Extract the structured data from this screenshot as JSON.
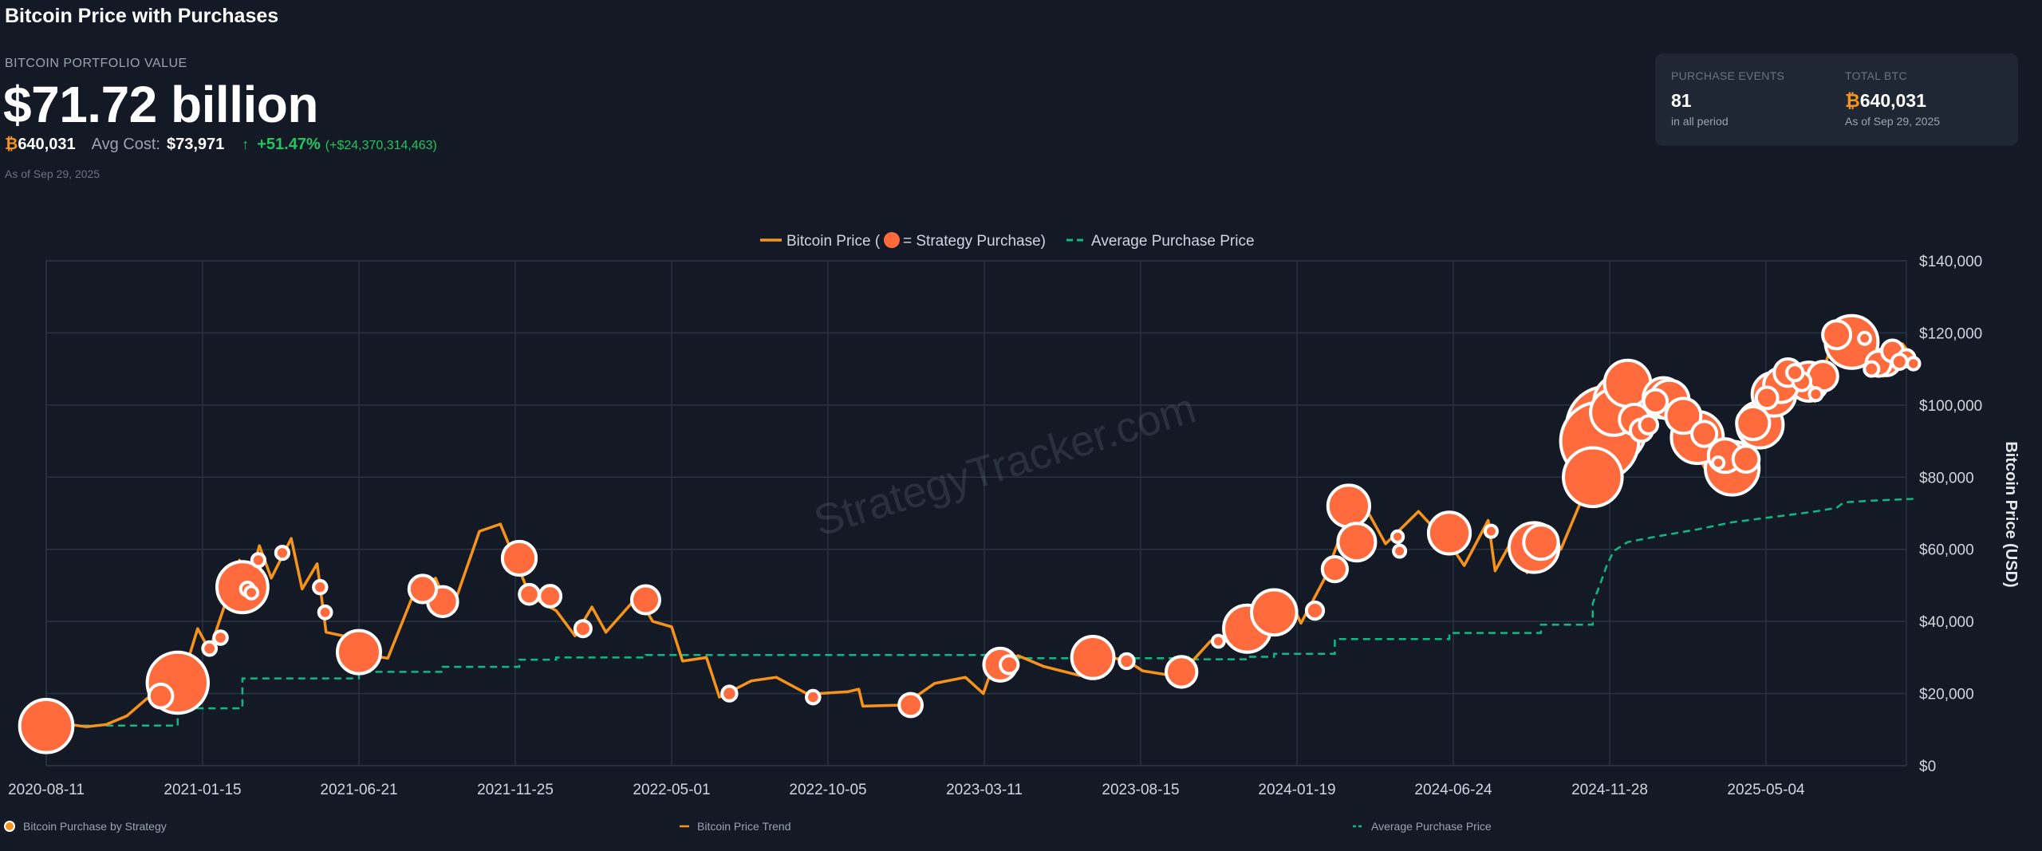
{
  "page": {
    "title": "Bitcoin Price with Purchases"
  },
  "portfolio": {
    "label": "BITCOIN PORTFOLIO VALUE",
    "value": "$71.72 billion",
    "btc_symbol": "₿",
    "btc_holdings": "640,031",
    "avg_cost_label": "Avg Cost:",
    "avg_cost_value": "$73,971",
    "gain_arrow": "↑",
    "gain_pct": "+51.47%",
    "gain_abs": "(+$24,370,314,463)",
    "as_of": "As of Sep 29, 2025"
  },
  "summary_card": {
    "purchase_events_label": "PURCHASE EVENTS",
    "purchase_events_value": "81",
    "purchase_events_sub": "in all period",
    "total_btc_label": "TOTAL BTC",
    "total_btc_symbol": "₿",
    "total_btc_value": "640,031",
    "total_btc_sub": "As of Sep 29, 2025"
  },
  "colors": {
    "background": "#131a26",
    "price_line": "#f7931a",
    "purchase_marker": "#ff6b3d",
    "average_line": "#10b981",
    "gain": "#22c55e",
    "grid": "#2a3342"
  },
  "watermark": "StrategyTracker.com",
  "chart_data": {
    "type": "line",
    "top_legend": {
      "price_label": "Bitcoin Price (",
      "price_label_suffix": " = Strategy Purchase)",
      "average_label": "Average Purchase Price"
    },
    "bottom_legend": [
      {
        "label": "Bitcoin Purchase by Strategy",
        "marker": "circle"
      },
      {
        "label": "Bitcoin Price Trend",
        "marker": "line"
      },
      {
        "label": "Average Purchase Price",
        "marker": "dashed-line"
      }
    ],
    "ylabel": "Bitcoin Price (USD)",
    "ylim": [
      0,
      140000
    ],
    "y_ticks": [
      0,
      20000,
      40000,
      60000,
      80000,
      100000,
      120000,
      140000
    ],
    "y_tick_labels": [
      "$0",
      "$20,000",
      "$40,000",
      "$60,000",
      "$80,000",
      "$100,000",
      "$120,000",
      "$140,000"
    ],
    "x_range": [
      "2020-08-11",
      "2025-09-29"
    ],
    "x_ticks": [
      "2020-08-11",
      "2021-01-15",
      "2021-06-21",
      "2021-11-25",
      "2022-05-01",
      "2022-10-05",
      "2023-03-11",
      "2023-08-15",
      "2024-01-19",
      "2024-06-24",
      "2024-11-28",
      "2025-05-04"
    ],
    "grid": true,
    "series": [
      {
        "name": "Bitcoin Price",
        "style": "line",
        "points": [
          [
            "2020-08-11",
            11800
          ],
          [
            "2020-09-01",
            11500
          ],
          [
            "2020-09-20",
            10800
          ],
          [
            "2020-10-10",
            11400
          ],
          [
            "2020-10-31",
            13800
          ],
          [
            "2020-11-20",
            18600
          ],
          [
            "2020-12-15",
            19400
          ],
          [
            "2020-12-31",
            29000
          ],
          [
            "2021-01-10",
            38000
          ],
          [
            "2021-01-22",
            32000
          ],
          [
            "2021-02-08",
            46000
          ],
          [
            "2021-02-21",
            57000
          ],
          [
            "2021-03-01",
            49000
          ],
          [
            "2021-03-13",
            61000
          ],
          [
            "2021-03-25",
            52000
          ],
          [
            "2021-04-14",
            63000
          ],
          [
            "2021-04-25",
            49000
          ],
          [
            "2021-05-10",
            56000
          ],
          [
            "2021-05-19",
            37000
          ],
          [
            "2021-06-05",
            36000
          ],
          [
            "2021-06-21",
            31000
          ],
          [
            "2021-07-20",
            29800
          ],
          [
            "2021-08-14",
            47000
          ],
          [
            "2021-09-06",
            52000
          ],
          [
            "2021-09-21",
            42000
          ],
          [
            "2021-10-20",
            65000
          ],
          [
            "2021-11-10",
            67000
          ],
          [
            "2021-11-25",
            57000
          ],
          [
            "2021-12-10",
            47000
          ],
          [
            "2022-01-05",
            43000
          ],
          [
            "2022-01-24",
            36000
          ],
          [
            "2022-02-10",
            44000
          ],
          [
            "2022-02-24",
            37000
          ],
          [
            "2022-03-28",
            47000
          ],
          [
            "2022-04-12",
            40000
          ],
          [
            "2022-05-01",
            38500
          ],
          [
            "2022-05-12",
            29000
          ],
          [
            "2022-06-05",
            30000
          ],
          [
            "2022-06-18",
            19000
          ],
          [
            "2022-07-20",
            23500
          ],
          [
            "2022-08-14",
            24500
          ],
          [
            "2022-09-15",
            19800
          ],
          [
            "2022-10-25",
            20500
          ],
          [
            "2022-11-05",
            21200
          ],
          [
            "2022-11-09",
            16500
          ],
          [
            "2022-12-20",
            16800
          ],
          [
            "2023-01-20",
            22800
          ],
          [
            "2023-02-20",
            24500
          ],
          [
            "2023-03-10",
            20000
          ],
          [
            "2023-03-20",
            28000
          ],
          [
            "2023-04-14",
            30500
          ],
          [
            "2023-05-10",
            27500
          ],
          [
            "2023-06-15",
            25000
          ],
          [
            "2023-07-05",
            30500
          ],
          [
            "2023-08-01",
            29200
          ],
          [
            "2023-08-17",
            26300
          ],
          [
            "2023-09-11",
            25200
          ],
          [
            "2023-10-01",
            27500
          ],
          [
            "2023-10-24",
            34500
          ],
          [
            "2023-11-25",
            37500
          ],
          [
            "2023-12-08",
            43500
          ],
          [
            "2024-01-11",
            46500
          ],
          [
            "2024-01-23",
            39500
          ],
          [
            "2024-02-15",
            51500
          ],
          [
            "2024-03-14",
            72000
          ],
          [
            "2024-04-01",
            69500
          ],
          [
            "2024-04-17",
            61500
          ],
          [
            "2024-05-20",
            70500
          ],
          [
            "2024-06-24",
            60000
          ],
          [
            "2024-07-05",
            55500
          ],
          [
            "2024-07-29",
            68000
          ],
          [
            "2024-08-05",
            54000
          ],
          [
            "2024-08-25",
            64000
          ],
          [
            "2024-09-06",
            53500
          ],
          [
            "2024-09-27",
            66000
          ],
          [
            "2024-10-10",
            60000
          ],
          [
            "2024-10-29",
            72500
          ],
          [
            "2024-11-12",
            88000
          ],
          [
            "2024-11-22",
            98500
          ],
          [
            "2024-12-05",
            100000
          ],
          [
            "2024-12-17",
            106000
          ],
          [
            "2024-12-30",
            92000
          ],
          [
            "2025-01-20",
            106000
          ],
          [
            "2025-02-01",
            100000
          ],
          [
            "2025-02-25",
            86000
          ],
          [
            "2025-03-10",
            79000
          ],
          [
            "2025-04-07",
            77000
          ],
          [
            "2025-04-25",
            94500
          ],
          [
            "2025-05-22",
            111000
          ],
          [
            "2025-06-22",
            101000
          ],
          [
            "2025-07-14",
            122000
          ],
          [
            "2025-07-31",
            114000
          ],
          [
            "2025-08-14",
            123500
          ],
          [
            "2025-08-30",
            108000
          ],
          [
            "2025-09-18",
            117000
          ],
          [
            "2025-09-29",
            113000
          ]
        ]
      },
      {
        "name": "Average Purchase Price",
        "style": "dashed-step",
        "points": [
          [
            "2020-08-11",
            11100
          ],
          [
            "2020-12-21",
            11100
          ],
          [
            "2020-12-21",
            15900
          ],
          [
            "2021-02-24",
            15900
          ],
          [
            "2021-02-24",
            24200
          ],
          [
            "2021-06-21",
            24200
          ],
          [
            "2021-06-21",
            26000
          ],
          [
            "2021-09-13",
            26000
          ],
          [
            "2021-09-13",
            27400
          ],
          [
            "2021-11-29",
            27400
          ],
          [
            "2021-11-29",
            29400
          ],
          [
            "2022-01-05",
            29400
          ],
          [
            "2022-01-05",
            30000
          ],
          [
            "2022-04-05",
            30000
          ],
          [
            "2022-04-05",
            30700
          ],
          [
            "2023-03-27",
            30700
          ],
          [
            "2023-03-27",
            29800
          ],
          [
            "2023-09-25",
            29800
          ],
          [
            "2023-09-25",
            29500
          ],
          [
            "2023-11-30",
            29500
          ],
          [
            "2023-11-30",
            30200
          ],
          [
            "2023-12-27",
            30200
          ],
          [
            "2023-12-27",
            31000
          ],
          [
            "2024-02-26",
            31000
          ],
          [
            "2024-02-26",
            35100
          ],
          [
            "2024-06-20",
            35100
          ],
          [
            "2024-06-20",
            36800
          ],
          [
            "2024-09-20",
            36800
          ],
          [
            "2024-09-20",
            39100
          ],
          [
            "2024-11-11",
            39100
          ],
          [
            "2024-11-11",
            45000
          ],
          [
            "2024-11-18",
            50000
          ],
          [
            "2024-11-25",
            55500
          ],
          [
            "2024-12-02",
            59500
          ],
          [
            "2024-12-16",
            62000
          ],
          [
            "2025-01-13",
            63500
          ],
          [
            "2025-02-24",
            65500
          ],
          [
            "2025-03-31",
            67500
          ],
          [
            "2025-04-28",
            68500
          ],
          [
            "2025-05-26",
            69500
          ],
          [
            "2025-06-23",
            70500
          ],
          [
            "2025-07-14",
            71500
          ],
          [
            "2025-07-21",
            73000
          ],
          [
            "2025-08-18",
            73500
          ],
          [
            "2025-09-29",
            73971
          ]
        ]
      },
      {
        "name": "Strategy Purchases",
        "style": "bubble",
        "points": [
          [
            "2020-08-11",
            11000,
            21454
          ],
          [
            "2020-12-21",
            23000,
            29646
          ],
          [
            "2020-12-04",
            19300,
            2574
          ],
          [
            "2021-01-22",
            32500,
            314
          ],
          [
            "2021-02-02",
            35500,
            295
          ],
          [
            "2021-02-24",
            49500,
            19452
          ],
          [
            "2021-03-01",
            49000,
            328
          ],
          [
            "2021-03-05",
            48000,
            205
          ],
          [
            "2021-03-12",
            57000,
            262
          ],
          [
            "2021-04-05",
            59000,
            253
          ],
          [
            "2021-05-13",
            49500,
            271
          ],
          [
            "2021-05-18",
            42500,
            229
          ],
          [
            "2021-06-21",
            31500,
            13005
          ],
          [
            "2021-08-24",
            49000,
            3907
          ],
          [
            "2021-09-13",
            45500,
            5050
          ],
          [
            "2021-11-29",
            57500,
            7002
          ],
          [
            "2021-12-09",
            47500,
            1434
          ],
          [
            "2021-12-30",
            47000,
            1914
          ],
          [
            "2022-02-01",
            38000,
            660
          ],
          [
            "2022-04-05",
            46000,
            4167
          ],
          [
            "2022-06-28",
            20000,
            480
          ],
          [
            "2022-09-20",
            19000,
            301
          ],
          [
            "2022-12-27",
            16800,
            2395
          ],
          [
            "2023-03-27",
            28000,
            6455
          ],
          [
            "2023-04-05",
            28000,
            1045
          ],
          [
            "2023-06-28",
            30000,
            12333
          ],
          [
            "2023-08-01",
            29000,
            467
          ],
          [
            "2023-09-25",
            26000,
            5445
          ],
          [
            "2023-11-01",
            34500,
            155
          ],
          [
            "2023-11-30",
            38000,
            16130
          ],
          [
            "2023-12-27",
            42500,
            14620
          ],
          [
            "2024-02-06",
            43000,
            850
          ],
          [
            "2024-02-26",
            54500,
            3000
          ],
          [
            "2024-03-11",
            72000,
            12000
          ],
          [
            "2024-03-19",
            62000,
            9245
          ],
          [
            "2024-04-29",
            63500,
            122
          ],
          [
            "2024-06-20",
            64500,
            11931
          ],
          [
            "2024-08-01",
            65000,
            169
          ],
          [
            "2024-09-13",
            60500,
            18300
          ],
          [
            "2024-09-20",
            62000,
            7420
          ],
          [
            "2024-11-11",
            80000,
            27200
          ],
          [
            "2024-11-18",
            90000,
            51780
          ],
          [
            "2024-11-25",
            94000,
            55500
          ],
          [
            "2024-12-02",
            98000,
            15400
          ],
          [
            "2024-12-09",
            101000,
            21550
          ],
          [
            "2024-12-16",
            106000,
            15350
          ],
          [
            "2024-12-23",
            96000,
            5262
          ],
          [
            "2024-12-30",
            93000,
            2138
          ],
          [
            "2025-01-06",
            94500,
            1070
          ],
          [
            "2025-01-13",
            101000,
            2530
          ],
          [
            "2025-01-21",
            102000,
            11000
          ],
          [
            "2025-01-27",
            101500,
            10107
          ],
          [
            "2025-02-10",
            97000,
            7633
          ],
          [
            "2025-02-24",
            91000,
            20356
          ],
          [
            "2025-03-17",
            84000,
            130
          ],
          [
            "2025-03-24",
            86000,
            6911
          ],
          [
            "2025-03-31",
            82500,
            22048
          ],
          [
            "2025-04-14",
            85000,
            3459
          ],
          [
            "2025-04-21",
            95000,
            6556
          ],
          [
            "2025-04-28",
            94500,
            15355
          ],
          [
            "2025-05-05",
            102000,
            1895
          ],
          [
            "2025-05-12",
            103000,
            13390
          ],
          [
            "2025-05-19",
            105500,
            7390
          ],
          [
            "2025-05-26",
            109000,
            4020
          ],
          [
            "2025-06-02",
            109000,
            705
          ],
          [
            "2025-06-09",
            106500,
            1045
          ],
          [
            "2025-06-16",
            106500,
            10100
          ],
          [
            "2025-06-23",
            103000,
            245
          ],
          [
            "2025-06-30",
            108000,
            4980
          ],
          [
            "2025-07-14",
            119500,
            4225
          ],
          [
            "2025-07-29",
            117500,
            21021
          ],
          [
            "2025-08-11",
            118500,
            155
          ],
          [
            "2025-08-18",
            110000,
            430
          ],
          [
            "2025-08-25",
            111500,
            3081
          ],
          [
            "2025-09-02",
            112000,
            4048
          ],
          [
            "2025-09-08",
            115000,
            1955
          ],
          [
            "2025-09-15",
            112000,
            525
          ],
          [
            "2025-09-22",
            113000,
            850
          ],
          [
            "2025-09-29",
            111500,
            196
          ],
          [
            "2025-03-03",
            92000,
            3000
          ],
          [
            "2024-05-01",
            59500,
            164
          ]
        ]
      }
    ]
  }
}
